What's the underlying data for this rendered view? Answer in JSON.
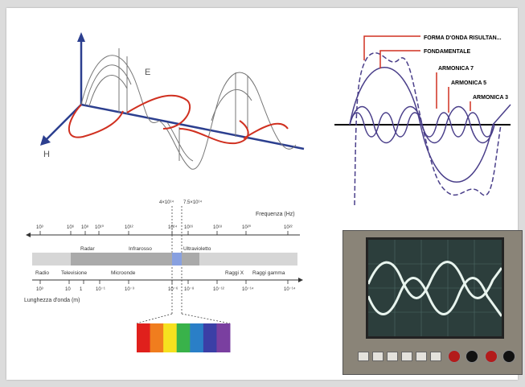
{
  "em_wave": {
    "e_label": "E",
    "h_label": "H"
  },
  "harmonics": {
    "labels": [
      "FORMA D'ONDA RISULTAN...",
      "FONDAMENTALE",
      "ARMONICA 7",
      "ARMONICA 5",
      "ARMONICA 3"
    ],
    "accent_color": "#d03020",
    "wave_color": "#4a3f8a"
  },
  "spectrum": {
    "frequency_title": "Frequenza (Hz)",
    "wavelength_title": "Lunghezza d'onda (m)",
    "top_markers": [
      "4×10¹⁴",
      "7.5×10¹⁴"
    ],
    "freq_ticks": [
      "10³",
      "10⁶",
      "10⁸",
      "10¹⁰",
      "10¹²",
      "10¹⁴",
      "10¹⁶",
      "10¹⁸",
      "10²⁰",
      "10²²"
    ],
    "wave_ticks": [
      "10³",
      "10",
      "1",
      "10⁻¹",
      "10⁻³",
      "10⁻⁶",
      "10⁻⁸",
      "10⁻¹²",
      "10⁻¹⁴",
      "10⁻¹⁴"
    ],
    "bands_upper": [
      "Radar",
      "Infrarosso",
      "Ultravioletto"
    ],
    "bands_lower": [
      "Radio",
      "Televisione",
      "Microonde",
      "Raggi X",
      "Raggi gamma"
    ],
    "visible_colors": [
      "#e0201c",
      "#f07d1e",
      "#f6e11f",
      "#39b24a",
      "#2a7fc7",
      "#3b3fa6",
      "#7a3fa0"
    ]
  },
  "oscilloscope": {
    "screen_color": "#2c3e3c",
    "trace_color": "#e8f4ee"
  }
}
